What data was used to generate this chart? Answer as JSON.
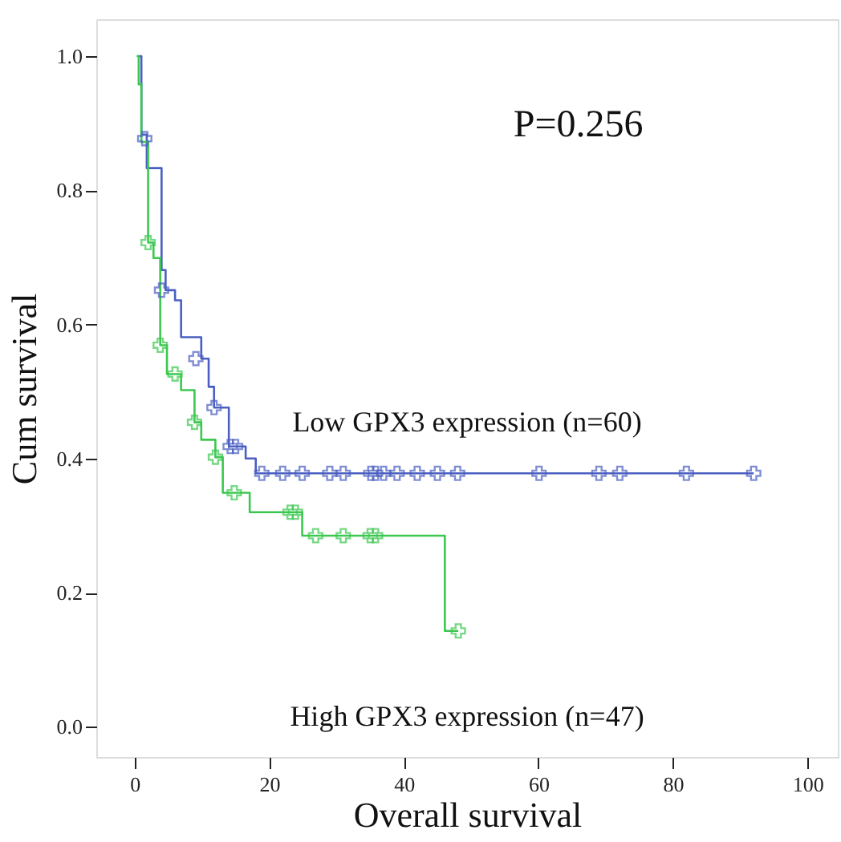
{
  "chart_data": {
    "type": "step",
    "xlabel": "Overall survival",
    "ylabel": "Cum survival",
    "annotations": [
      "P=0.256"
    ],
    "xlim": [
      -5.7,
      104.5
    ],
    "xticks": [
      0,
      20,
      40,
      60,
      80,
      100
    ],
    "ylim": [
      -0.045,
      1.055
    ],
    "yticks": [
      {
        "value": 0,
        "label": "0.0"
      },
      {
        "value": 0.2,
        "label": "0.2"
      },
      {
        "value": 0.4,
        "label": "0.4"
      },
      {
        "value": 0.6,
        "label": "0.6"
      },
      {
        "value": 0.8,
        "label": "0.8"
      },
      {
        "value": 1,
        "label": "1.0"
      }
    ],
    "grid": false,
    "line_style": "solid",
    "marker": "none",
    "series": [
      {
        "name": "Low GPX3 expression (n=60)",
        "color": "#4a5fc1",
        "x": [
          0.5,
          1.0,
          1.8,
          4.0,
          4.6,
          6.0,
          6.9,
          9.9,
          11.0,
          11.8,
          14.0,
          16.5,
          18.0,
          92
        ],
        "values": [
          1.0,
          0.883,
          0.833,
          0.681,
          0.651,
          0.636,
          0.581,
          0.549,
          0.507,
          0.476,
          0.418,
          0.4,
          0.378,
          0.378
        ]
      },
      {
        "name": "High GPX3 expression (n=47)",
        "color": "#3cc850",
        "x": [
          0.3,
          0.6,
          1.0,
          2.0,
          2.8,
          3.8,
          4.8,
          6.9,
          8.9,
          9.9,
          12.0,
          13.1,
          17.1,
          24.9,
          46.1,
          48.1
        ],
        "values": [
          1.0,
          0.958,
          0.872,
          0.722,
          0.699,
          0.569,
          0.526,
          0.502,
          0.454,
          0.428,
          0.402,
          0.349,
          0.32,
          0.285,
          0.143,
          0.143
        ]
      },
      {
        "type": "scatter",
        "marker": "cross",
        "color": "#4a5fc1",
        "x": [
          1.5,
          4.0,
          9.1,
          11.8,
          14.2,
          15.0,
          18.9,
          22.0,
          24.9,
          29.0,
          31.0,
          35.1,
          35.8,
          37.0,
          39.0,
          42.0,
          45.0,
          48.0,
          60.1,
          69.0,
          72.1,
          82.0,
          92
        ],
        "values": [
          0.877,
          0.651,
          0.549,
          0.476,
          0.418,
          0.418,
          0.378,
          0.378,
          0.378,
          0.378,
          0.378,
          0.378,
          0.378,
          0.378,
          0.378,
          0.378,
          0.378,
          0.378,
          0.378,
          0.378,
          0.378,
          0.378,
          0.378
        ]
      },
      {
        "type": "scatter",
        "marker": "cross",
        "color": "#3cc850",
        "x": [
          2.0,
          3.8,
          6.0,
          8.9,
          12.0,
          14.8,
          23.1,
          23.9,
          26.9,
          31.0,
          35.0,
          35.8,
          48.1
        ],
        "values": [
          0.722,
          0.569,
          0.526,
          0.454,
          0.402,
          0.349,
          0.32,
          0.32,
          0.285,
          0.285,
          0.285,
          0.285,
          0.143
        ]
      }
    ]
  }
}
